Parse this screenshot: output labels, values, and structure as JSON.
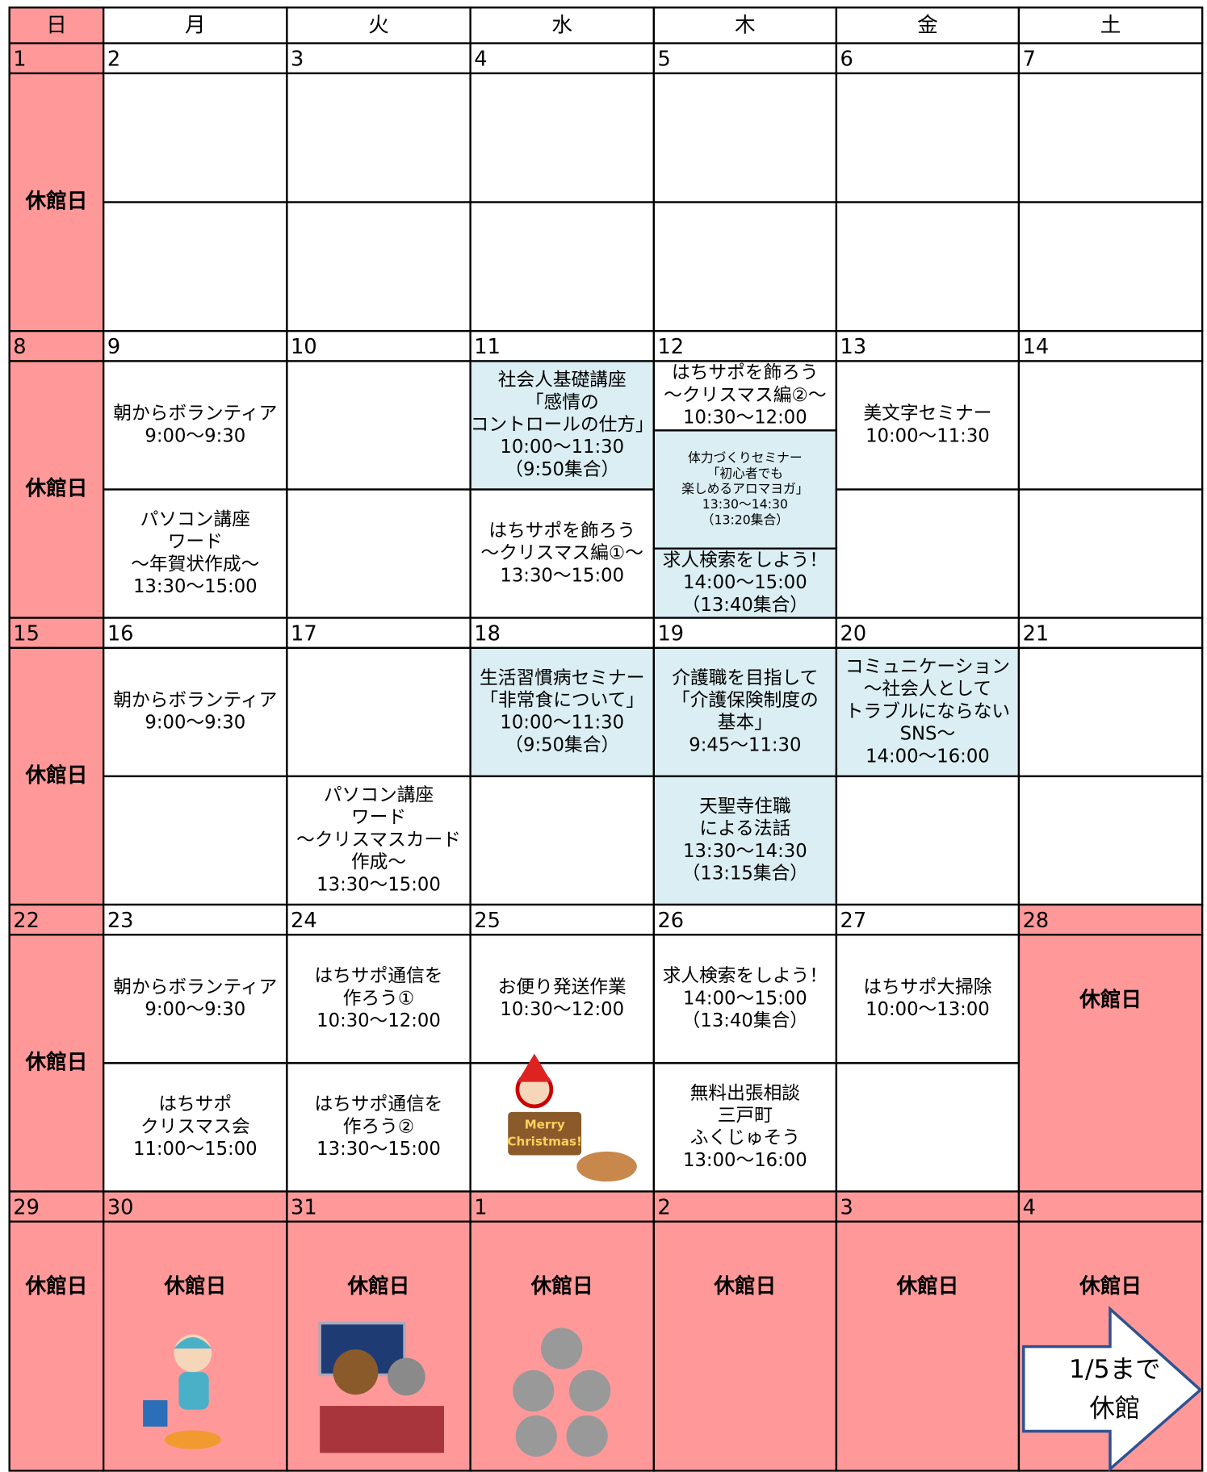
{
  "header": {
    "days": [
      "日",
      "月",
      "火",
      "水",
      "木",
      "金",
      "土"
    ]
  },
  "weeks": [
    {
      "days": [
        {
          "date": "1",
          "closed": "休館日"
        },
        {
          "date": "2",
          "slots": [
            null,
            null
          ]
        },
        {
          "date": "3",
          "slots": [
            null,
            null
          ]
        },
        {
          "date": "4",
          "slots": [
            null,
            null
          ]
        },
        {
          "date": "5",
          "slots": [
            null,
            null
          ]
        },
        {
          "date": "6",
          "slots": [
            null,
            null
          ]
        },
        {
          "date": "7",
          "slots": [
            null,
            null
          ]
        }
      ]
    },
    {
      "days": [
        {
          "date": "8",
          "closed": "休館日"
        },
        {
          "date": "9",
          "slots": [
            {
              "lines": [
                "朝からボランティア",
                "9:00〜9:30"
              ]
            },
            {
              "lines": [
                "パソコン講座",
                "ワード",
                "〜年賀状作成〜",
                "13:30〜15:00"
              ]
            }
          ]
        },
        {
          "date": "10",
          "slots": [
            null,
            null
          ]
        },
        {
          "date": "11",
          "slots": [
            {
              "lines": [
                "社会人基礎講座",
                "「感情の",
                "コントロールの仕方」",
                "10:00〜11:30",
                "（9:50集合）"
              ],
              "highlight": true
            },
            {
              "lines": [
                "はちサポを飾ろう",
                "〜クリスマス編①〜",
                "13:30〜15:00"
              ]
            }
          ]
        },
        {
          "date": "12",
          "slots": [
            {
              "lines": [
                "はちサポを飾ろう",
                "〜クリスマス編②〜",
                "10:30〜12:00"
              ]
            },
            {
              "lines": [
                "体力づくりセミナー",
                "「初心者でも",
                "楽しめるアロマヨガ」",
                "13:30〜14:30",
                "（13:20集合）"
              ],
              "highlight": true,
              "small": true
            },
            {
              "lines": [
                "求人検索をしよう！",
                "14:00〜15:00",
                "（13:40集合）"
              ],
              "highlight": true
            }
          ]
        },
        {
          "date": "13",
          "slots": [
            {
              "lines": [
                "美文字セミナー",
                "10:00〜11:30"
              ]
            },
            null
          ]
        },
        {
          "date": "14",
          "slots": [
            null,
            null
          ]
        }
      ]
    },
    {
      "days": [
        {
          "date": "15",
          "closed": "休館日"
        },
        {
          "date": "16",
          "slots": [
            {
              "lines": [
                "朝からボランティア",
                "9:00〜9:30"
              ]
            },
            null
          ]
        },
        {
          "date": "17",
          "slots": [
            null,
            {
              "lines": [
                "パソコン講座",
                "ワード",
                "〜クリスマスカード",
                "作成〜",
                "13:30〜15:00"
              ]
            }
          ]
        },
        {
          "date": "18",
          "slots": [
            {
              "lines": [
                "生活習慣病セミナー",
                "「非常食について」",
                "10:00〜11:30",
                "（9:50集合）"
              ],
              "highlight": true
            },
            null
          ]
        },
        {
          "date": "19",
          "slots": [
            {
              "lines": [
                "介護職を目指して",
                "「介護保険制度の",
                "基本」",
                "9:45〜11:30"
              ],
              "highlight": true
            },
            {
              "lines": [
                "天聖寺住職",
                "による法話",
                "13:30〜14:30",
                "（13:15集合）"
              ],
              "highlight": true
            }
          ]
        },
        {
          "date": "20",
          "slots": [
            {
              "lines": [
                "コミュニケーション",
                "〜社会人として",
                "トラブルにならない",
                "SNS〜",
                "14:00〜16:00"
              ],
              "highlight": true
            },
            null
          ]
        },
        {
          "date": "21",
          "slots": [
            null,
            null
          ]
        }
      ]
    },
    {
      "days": [
        {
          "date": "22",
          "closed": "休館日"
        },
        {
          "date": "23",
          "slots": [
            {
              "lines": [
                "朝からボランティア",
                "9:00〜9:30"
              ]
            },
            {
              "lines": [
                "はちサポ",
                "クリスマス会",
                "11:00〜15:00"
              ]
            }
          ]
        },
        {
          "date": "24",
          "slots": [
            {
              "lines": [
                "はちサポ通信を",
                "作ろう①",
                "10:30〜12:00"
              ]
            },
            {
              "lines": [
                "はちサポ通信を",
                "作ろう②",
                "13:30〜15:00"
              ]
            }
          ]
        },
        {
          "date": "25",
          "slots": [
            {
              "lines": [
                "お便り発送作業",
                "10:30〜12:00"
              ]
            },
            null
          ],
          "sign": [
            "Merry",
            "Christmas!"
          ]
        },
        {
          "date": "26",
          "slots": [
            {
              "lines": [
                "求人検索をしよう！",
                "14:00〜15:00",
                "（13:40集合）"
              ]
            },
            {
              "lines": [
                "無料出張相談",
                "三戸町",
                "ふくじゅそう",
                "13:00〜16:00"
              ]
            }
          ]
        },
        {
          "date": "27",
          "slots": [
            {
              "lines": [
                "はちサポ大掃除",
                "10:00〜13:00"
              ]
            },
            null
          ]
        },
        {
          "date": "28",
          "closed": "休館日"
        }
      ]
    },
    {
      "days": [
        {
          "date": "29",
          "closed": "休館日"
        },
        {
          "date": "30",
          "closed": "休館日"
        },
        {
          "date": "31",
          "closed": "休館日"
        },
        {
          "date": "1",
          "closed": "休館日"
        },
        {
          "date": "2",
          "closed": "休館日"
        },
        {
          "date": "3",
          "closed": "休館日"
        },
        {
          "date": "4",
          "closed": "休館日",
          "arrow": [
            "1/5まで",
            "休館"
          ]
        }
      ]
    }
  ]
}
